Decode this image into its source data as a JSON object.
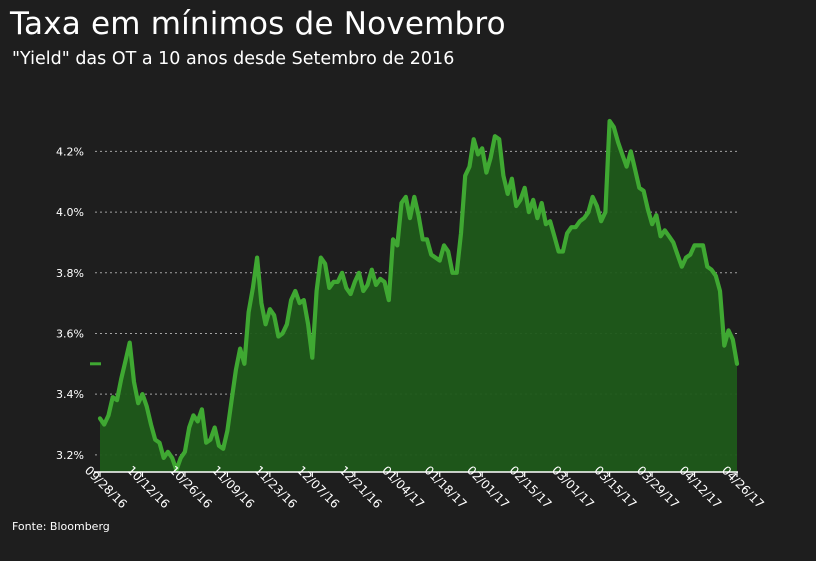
{
  "title": "Taxa em mínimos de Novembro",
  "subtitle": "\"Yield\" das OT a 10 anos desde Setembro de 2016",
  "source": "Fonte: Bloomberg",
  "colors": {
    "background": "#1e1e1e",
    "line": "#3fa832",
    "area": "#1f5a1a",
    "grid": "#cfcfcf",
    "text": "#ffffff"
  },
  "chart_data": {
    "type": "area",
    "series": [
      {
        "values": [
          3.32,
          3.3,
          3.33,
          3.39,
          3.38,
          3.45,
          3.51,
          3.57,
          3.44,
          3.37,
          3.4,
          3.36,
          3.3,
          3.25,
          3.24,
          3.19,
          3.21,
          3.19,
          3.15,
          3.19,
          3.21,
          3.29,
          3.33,
          3.31,
          3.35,
          3.24,
          3.25,
          3.29,
          3.23,
          3.22,
          3.28,
          3.38,
          3.48,
          3.55,
          3.5,
          3.67,
          3.75,
          3.85,
          3.7,
          3.63,
          3.68,
          3.66,
          3.59,
          3.6,
          3.63,
          3.71,
          3.74,
          3.7,
          3.71,
          3.63,
          3.52,
          3.74,
          3.85,
          3.83,
          3.75,
          3.77,
          3.77,
          3.8,
          3.75,
          3.73,
          3.77,
          3.8,
          3.74,
          3.76,
          3.81,
          3.76,
          3.78,
          3.77,
          3.71,
          3.91,
          3.89,
          4.03,
          4.05,
          3.98,
          4.05,
          3.99,
          3.91,
          3.91,
          3.86,
          3.85,
          3.84,
          3.89,
          3.87,
          3.8,
          3.8,
          3.93,
          4.12,
          4.15,
          4.24,
          4.19,
          4.21,
          4.13,
          4.18,
          4.25,
          4.24,
          4.12,
          4.06,
          4.11,
          4.02,
          4.04,
          4.08,
          4.0,
          4.04,
          3.98,
          4.03,
          3.96,
          3.97,
          3.92,
          3.87,
          3.87,
          3.93,
          3.95,
          3.95,
          3.97,
          3.98,
          4.0,
          4.05,
          4.02,
          3.97,
          4.0,
          4.3,
          4.28,
          4.23,
          4.19,
          4.15,
          4.2,
          4.14,
          4.08,
          4.07,
          4.01,
          3.96,
          3.99,
          3.92,
          3.94,
          3.92,
          3.9,
          3.86,
          3.82,
          3.85,
          3.86,
          3.89,
          3.89,
          3.89,
          3.82,
          3.81,
          3.79,
          3.74,
          3.56,
          3.61,
          3.58,
          3.5
        ]
      }
    ],
    "x_ticks": [
      "09/28/16",
      "10/12/16",
      "10/26/16",
      "11/09/16",
      "11/23/16",
      "12/07/16",
      "12/21/16",
      "01/04/17",
      "01/18/17",
      "02/01/17",
      "02/15/17",
      "03/01/17",
      "03/15/17",
      "03/29/17",
      "04/12/17",
      "04/26/17"
    ],
    "y_ticks": [
      3.2,
      3.4,
      3.6,
      3.8,
      4.0,
      4.2
    ],
    "y_tick_labels": [
      "3.2%",
      "3.4%",
      "3.6%",
      "3.8%",
      "4.0%",
      "4.2%"
    ],
    "ylim": [
      3.15,
      4.31
    ],
    "xlabel": "",
    "ylabel": "",
    "grid": true,
    "last_value_marker": 3.5
  }
}
